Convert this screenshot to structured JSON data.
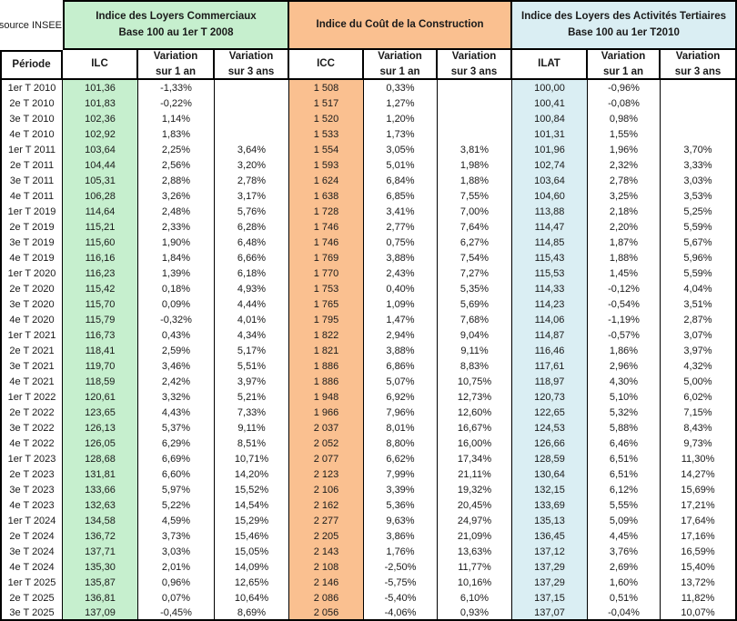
{
  "source_label": "source INSEE",
  "colors": {
    "ilc_fill": "#C6EFCE",
    "icc_fill": "#FAC090",
    "ilat_fill": "#DAEEF3",
    "border": "#000000",
    "text": "#1A1A1A"
  },
  "groups": [
    {
      "id": "ilc",
      "title": "Indice des Loyers Commerciaux\nBase 100 au 1er T 2008"
    },
    {
      "id": "icc",
      "title": "Indice du Coût de la Construction"
    },
    {
      "id": "ilat",
      "title": "Indice des Loyers des Activités Tertiaires\nBase 100 au 1er T2010"
    }
  ],
  "columns": [
    {
      "label": "Période",
      "data_fill": null
    },
    {
      "label": "ILC",
      "data_fill": "ilc"
    },
    {
      "label": "Variation\nsur 1 an",
      "data_fill": null
    },
    {
      "label": "Variation\nsur 3 ans",
      "data_fill": null
    },
    {
      "label": "ICC",
      "data_fill": "icc"
    },
    {
      "label": "Variation\nsur 1 an",
      "data_fill": null
    },
    {
      "label": "Variation\nsur 3 ans",
      "data_fill": null
    },
    {
      "label": "ILAT",
      "data_fill": "ilat"
    },
    {
      "label": "Variation\nsur 1 an",
      "data_fill": null
    },
    {
      "label": "Variation\nsur 3 ans",
      "data_fill": null
    }
  ],
  "rows": [
    [
      "1er T 2010",
      "101,36",
      "-1,33%",
      "",
      "1 508",
      "0,33%",
      "",
      "100,00",
      "-0,96%",
      ""
    ],
    [
      "2e T 2010",
      "101,83",
      "-0,22%",
      "",
      "1 517",
      "1,27%",
      "",
      "100,41",
      "-0,08%",
      ""
    ],
    [
      "3e T 2010",
      "102,36",
      "1,14%",
      "",
      "1 520",
      "1,20%",
      "",
      "100,84",
      "0,98%",
      ""
    ],
    [
      "4e T 2010",
      "102,92",
      "1,83%",
      "",
      "1 533",
      "1,73%",
      "",
      "101,31",
      "1,55%",
      ""
    ],
    [
      "1er T 2011",
      "103,64",
      "2,25%",
      "3,64%",
      "1 554",
      "3,05%",
      "3,81%",
      "101,96",
      "1,96%",
      "3,70%"
    ],
    [
      "2e T 2011",
      "104,44",
      "2,56%",
      "3,20%",
      "1 593",
      "5,01%",
      "1,98%",
      "102,74",
      "2,32%",
      "3,33%"
    ],
    [
      "3e T 2011",
      "105,31",
      "2,88%",
      "2,78%",
      "1 624",
      "6,84%",
      "1,88%",
      "103,64",
      "2,78%",
      "3,03%"
    ],
    [
      "4e T 2011",
      "106,28",
      "3,26%",
      "3,17%",
      "1 638",
      "6,85%",
      "7,55%",
      "104,60",
      "3,25%",
      "3,53%"
    ],
    [
      "1er T 2019",
      "114,64",
      "2,48%",
      "5,76%",
      "1 728",
      "3,41%",
      "7,00%",
      "113,88",
      "2,18%",
      "5,25%"
    ],
    [
      "2e T 2019",
      "115,21",
      "2,33%",
      "6,28%",
      "1 746",
      "2,77%",
      "7,64%",
      "114,47",
      "2,20%",
      "5,59%"
    ],
    [
      "3e T 2019",
      "115,60",
      "1,90%",
      "6,48%",
      "1 746",
      "0,75%",
      "6,27%",
      "114,85",
      "1,87%",
      "5,67%"
    ],
    [
      "4e T 2019",
      "116,16",
      "1,84%",
      "6,66%",
      "1 769",
      "3,88%",
      "7,54%",
      "115,43",
      "1,88%",
      "5,96%"
    ],
    [
      "1er T 2020",
      "116,23",
      "1,39%",
      "6,18%",
      "1 770",
      "2,43%",
      "7,27%",
      "115,53",
      "1,45%",
      "5,59%"
    ],
    [
      "2e T 2020",
      "115,42",
      "0,18%",
      "4,93%",
      "1 753",
      "0,40%",
      "5,35%",
      "114,33",
      "-0,12%",
      "4,04%"
    ],
    [
      "3e T 2020",
      "115,70",
      "0,09%",
      "4,44%",
      "1 765",
      "1,09%",
      "5,69%",
      "114,23",
      "-0,54%",
      "3,51%"
    ],
    [
      "4e T 2020",
      "115,79",
      "-0,32%",
      "4,01%",
      "1 795",
      "1,47%",
      "7,68%",
      "114,06",
      "-1,19%",
      "2,87%"
    ],
    [
      "1er T 2021",
      "116,73",
      "0,43%",
      "4,34%",
      "1 822",
      "2,94%",
      "9,04%",
      "114,87",
      "-0,57%",
      "3,07%"
    ],
    [
      "2e T 2021",
      "118,41",
      "2,59%",
      "5,17%",
      "1 821",
      "3,88%",
      "9,11%",
      "116,46",
      "1,86%",
      "3,97%"
    ],
    [
      "3e T 2021",
      "119,70",
      "3,46%",
      "5,51%",
      "1 886",
      "6,86%",
      "8,83%",
      "117,61",
      "2,96%",
      "4,32%"
    ],
    [
      "4e T 2021",
      "118,59",
      "2,42%",
      "3,97%",
      "1 886",
      "5,07%",
      "10,75%",
      "118,97",
      "4,30%",
      "5,00%"
    ],
    [
      "1er T 2022",
      "120,61",
      "3,32%",
      "5,21%",
      "1 948",
      "6,92%",
      "12,73%",
      "120,73",
      "5,10%",
      "6,02%"
    ],
    [
      "2e T 2022",
      "123,65",
      "4,43%",
      "7,33%",
      "1 966",
      "7,96%",
      "12,60%",
      "122,65",
      "5,32%",
      "7,15%"
    ],
    [
      "3e T 2022",
      "126,13",
      "5,37%",
      "9,11%",
      "2 037",
      "8,01%",
      "16,67%",
      "124,53",
      "5,88%",
      "8,43%"
    ],
    [
      "4e T 2022",
      "126,05",
      "6,29%",
      "8,51%",
      "2 052",
      "8,80%",
      "16,00%",
      "126,66",
      "6,46%",
      "9,73%"
    ],
    [
      "1er T 2023",
      "128,68",
      "6,69%",
      "10,71%",
      "2 077",
      "6,62%",
      "17,34%",
      "128,59",
      "6,51%",
      "11,30%"
    ],
    [
      "2e T 2023",
      "131,81",
      "6,60%",
      "14,20%",
      "2 123",
      "7,99%",
      "21,11%",
      "130,64",
      "6,51%",
      "14,27%"
    ],
    [
      "3e T 2023",
      "133,66",
      "5,97%",
      "15,52%",
      "2 106",
      "3,39%",
      "19,32%",
      "132,15",
      "6,12%",
      "15,69%"
    ],
    [
      "4e T 2023",
      "132,63",
      "5,22%",
      "14,54%",
      "2 162",
      "5,36%",
      "20,45%",
      "133,69",
      "5,55%",
      "17,21%"
    ],
    [
      "1er T 2024",
      "134,58",
      "4,59%",
      "15,29%",
      "2 277",
      "9,63%",
      "24,97%",
      "135,13",
      "5,09%",
      "17,64%"
    ],
    [
      "2e T 2024",
      "136,72",
      "3,73%",
      "15,46%",
      "2 205",
      "3,86%",
      "21,09%",
      "136,45",
      "4,45%",
      "17,16%"
    ],
    [
      "3e T 2024",
      "137,71",
      "3,03%",
      "15,05%",
      "2 143",
      "1,76%",
      "13,63%",
      "137,12",
      "3,76%",
      "16,59%"
    ],
    [
      "4e T 2024",
      "135,30",
      "2,01%",
      "14,09%",
      "2 108",
      "-2,50%",
      "11,77%",
      "137,29",
      "2,69%",
      "15,40%"
    ],
    [
      "1er T 2025",
      "135,87",
      "0,96%",
      "12,65%",
      "2 146",
      "-5,75%",
      "10,16%",
      "137,29",
      "1,60%",
      "13,72%"
    ],
    [
      "2e T 2025",
      "136,81",
      "0,07%",
      "10,64%",
      "2 086",
      "-5,40%",
      "6,10%",
      "137,15",
      "0,51%",
      "11,82%"
    ],
    [
      "3e T 2025",
      "137,09",
      "-0,45%",
      "8,69%",
      "2 056",
      "-4,06%",
      "0,93%",
      "137,07",
      "-0,04%",
      "10,07%"
    ]
  ]
}
